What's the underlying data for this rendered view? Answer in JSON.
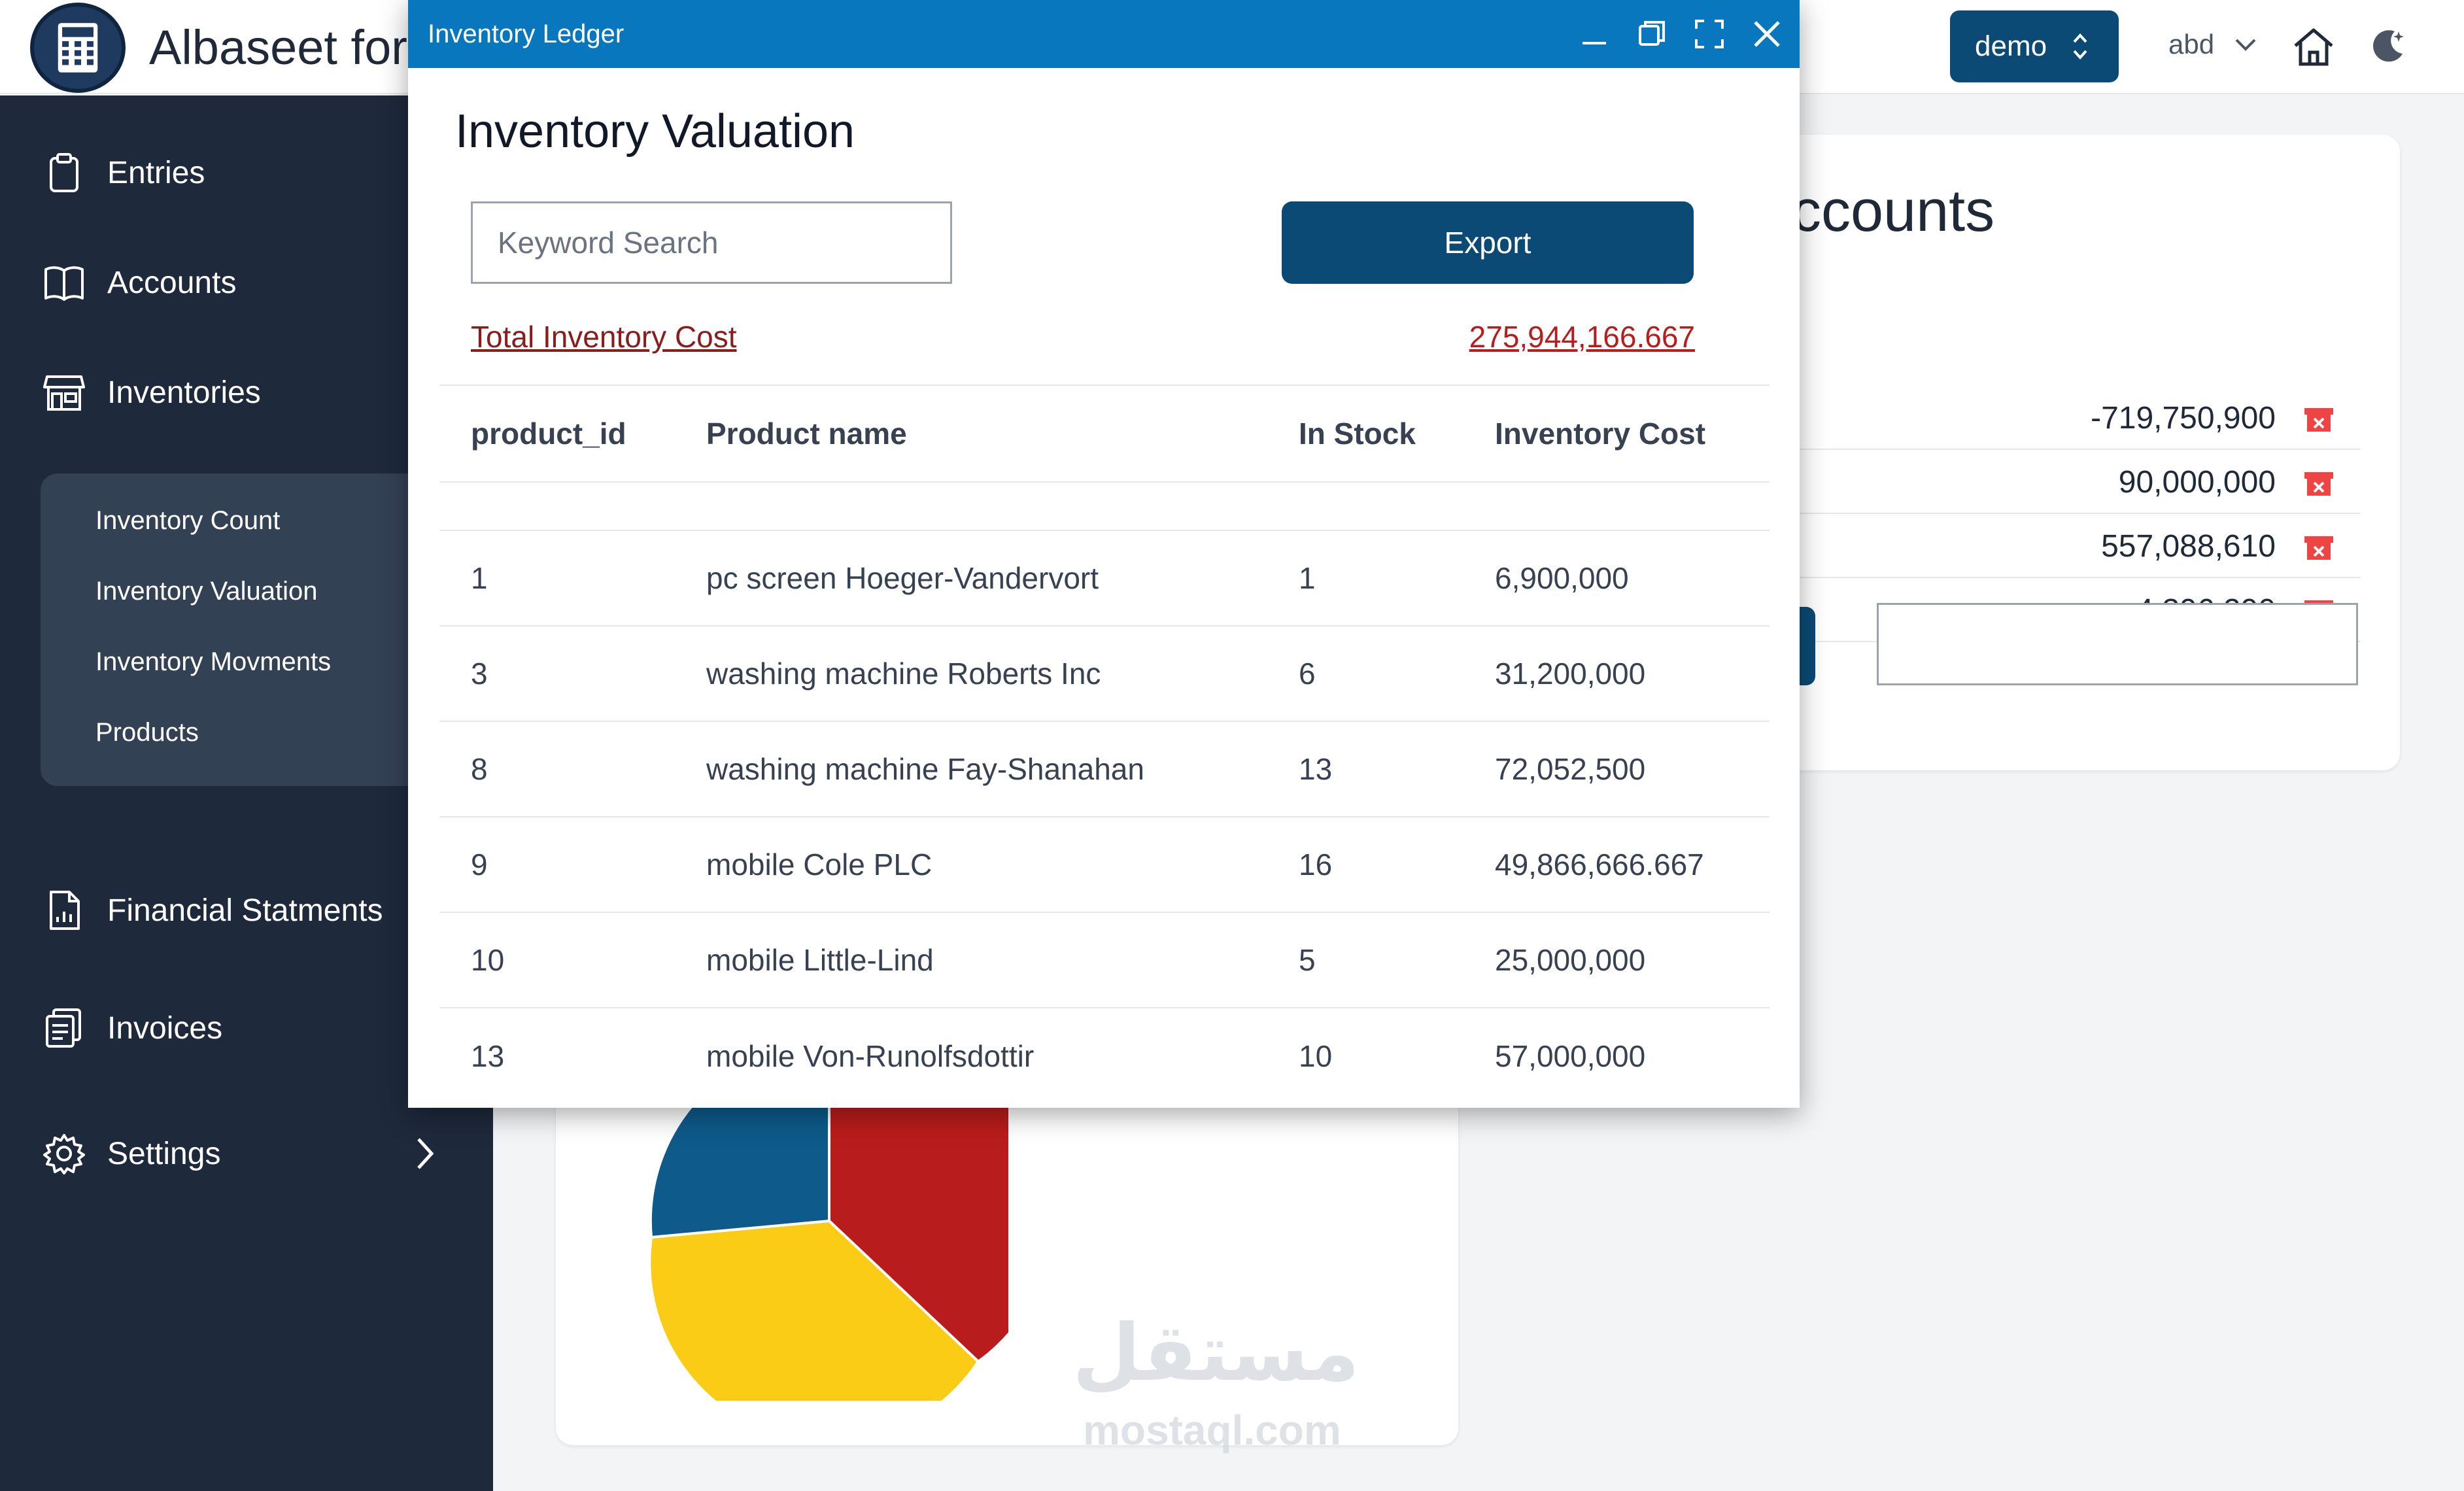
{
  "app": {
    "title": "Albaseet for"
  },
  "header": {
    "datasource": "demo",
    "user": "abd"
  },
  "sidebar": {
    "items": [
      {
        "label": "Entries",
        "icon": "clipboard-icon"
      },
      {
        "label": "Accounts",
        "icon": "book-icon"
      },
      {
        "label": "Inventories",
        "icon": "store-icon"
      },
      {
        "label": "Financial Statments",
        "icon": "report-icon"
      },
      {
        "label": "Invoices",
        "icon": "invoice-icon"
      },
      {
        "label": "Settings",
        "icon": "gear-icon"
      }
    ],
    "inventory_submenu": [
      "Inventory Count",
      "Inventory Valuation",
      "Inventory Movments",
      "Products"
    ]
  },
  "accounts_card": {
    "heading": "ccounts",
    "amounts": [
      "-719,750,900",
      "90,000,000",
      "557,088,610",
      "4,396,290"
    ]
  },
  "modal": {
    "window_title": "Inventory Ledger",
    "heading": "Inventory Valuation",
    "search_placeholder": "Keyword Search",
    "export_label": "Export",
    "total_label": "Total Inventory Cost",
    "total_value": "275,944,166.667",
    "columns": [
      "product_id",
      "Product name",
      "In Stock",
      "Inventory Cost"
    ],
    "rows": [
      {
        "id": "1",
        "name": "pc screen Hoeger-Vandervort",
        "stock": "1",
        "cost": "6,900,000"
      },
      {
        "id": "3",
        "name": "washing machine Roberts Inc",
        "stock": "6",
        "cost": "31,200,000"
      },
      {
        "id": "8",
        "name": "washing machine Fay-Shanahan",
        "stock": "13",
        "cost": "72,052,500"
      },
      {
        "id": "9",
        "name": "mobile Cole PLC",
        "stock": "16",
        "cost": "49,866,666.667"
      },
      {
        "id": "10",
        "name": "mobile Little-Lind",
        "stock": "5",
        "cost": "25,000,000"
      },
      {
        "id": "13",
        "name": "mobile Von-Runolfsdottir",
        "stock": "10",
        "cost": "57,000,000"
      }
    ]
  },
  "watermark": {
    "text": "مستقل",
    "sub": "mostaql.com"
  },
  "colors": {
    "primary": "#0b4a75",
    "titlebar": "#0877bd",
    "sidebar": "#1e293b",
    "pie_red": "#b91c1c",
    "pie_yellow": "#facc15",
    "pie_blue": "#0e5a8a"
  }
}
